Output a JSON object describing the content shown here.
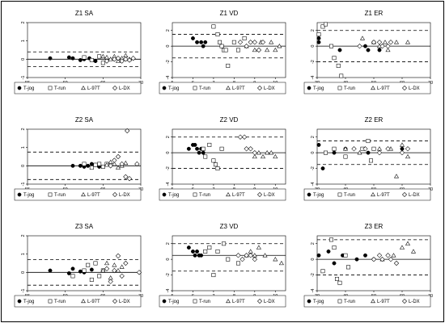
{
  "legend_labels": [
    "T-jog",
    "T-run",
    "L-97T",
    "L-DX"
  ],
  "chart_data": [
    {
      "type": "scatter",
      "title": "Z1 SA",
      "xlim": [
        55,
        70
      ],
      "ylim": [
        -1,
        2
      ],
      "xticks": [
        55,
        60,
        65,
        70
      ],
      "yticks": [
        -1,
        0,
        1,
        2
      ],
      "mean": 0.0,
      "upper": 0.4,
      "lower": -0.4,
      "series": [
        {
          "name": "T-jog",
          "x": [
            58,
            60.5,
            61,
            62,
            62.5,
            63.2,
            64
          ],
          "y": [
            0.05,
            0.1,
            0.05,
            -0.05,
            0.0,
            0.05,
            -0.1
          ]
        },
        {
          "name": "T-run",
          "x": [
            62.5,
            63.5,
            64.5,
            65
          ],
          "y": [
            0.1,
            -0.05,
            0.15,
            -0.2
          ]
        },
        {
          "name": "L-97T",
          "x": [
            65,
            65.5,
            66,
            66.5,
            67,
            67.5,
            68,
            68.5
          ],
          "y": [
            0.15,
            0.1,
            0.0,
            0.15,
            -0.1,
            0.05,
            0.2,
            0.0
          ]
        },
        {
          "name": "L-DX",
          "x": [
            65.5,
            66.5,
            67,
            67.5,
            68,
            68.5,
            69
          ],
          "y": [
            -0.1,
            0.0,
            0.05,
            -0.1,
            0.0,
            -0.05,
            0.05
          ]
        }
      ]
    },
    {
      "type": "scatter",
      "title": "Z1 VD",
      "xlim": [
        5,
        10.5
      ],
      "ylim": [
        -4,
        3
      ],
      "xticks": [
        5,
        6,
        7,
        8,
        9,
        10
      ],
      "yticks": [
        -4,
        -2,
        0,
        2
      ],
      "mean": 0.0,
      "upper": 1.5,
      "lower": -1.5,
      "series": [
        {
          "name": "T-jog",
          "x": [
            6.0,
            6.2,
            6.4,
            6.5,
            6.6
          ],
          "y": [
            1.0,
            0.5,
            0.5,
            0.0,
            0.5
          ]
        },
        {
          "name": "T-run",
          "x": [
            7.0,
            7.2,
            7.3,
            7.4,
            7.5,
            7.6,
            7.7,
            8.0,
            8.2,
            8.5
          ],
          "y": [
            2.5,
            1.5,
            0.5,
            0.0,
            -0.5,
            -0.5,
            -2.5,
            0.5,
            -0.5,
            1.0
          ]
        },
        {
          "name": "L-97T",
          "x": [
            8.6,
            9.0,
            9.3,
            9.6,
            9.8,
            10.0,
            10.2
          ],
          "y": [
            0.0,
            -0.5,
            0.5,
            -0.5,
            0.5,
            -0.5,
            0.0
          ]
        },
        {
          "name": "L-DX",
          "x": [
            8.3,
            8.6,
            8.8,
            9.0,
            9.2,
            9.4
          ],
          "y": [
            0.5,
            0.0,
            0.5,
            0.5,
            -0.5,
            0.5
          ]
        }
      ]
    },
    {
      "type": "scatter",
      "title": "Z1 ER",
      "xlim": [
        30,
        70
      ],
      "ylim": [
        -4,
        3
      ],
      "xticks": [
        30,
        40,
        50,
        60,
        70
      ],
      "yticks": [
        -4,
        -2,
        0,
        2
      ],
      "mean": 0.0,
      "upper": 2.0,
      "lower": -2.0,
      "series": [
        {
          "name": "T-jog",
          "x": [
            29,
            30,
            38,
            47,
            48,
            50,
            52
          ],
          "y": [
            0.5,
            1.0,
            -0.5,
            0.0,
            -0.5,
            0.5,
            -0.5
          ]
        },
        {
          "name": "T-run",
          "x": [
            28.5,
            32,
            33,
            35,
            36,
            37.5,
            38.5
          ],
          "y": [
            1.5,
            2.5,
            3.0,
            0.0,
            -1.5,
            -2.5,
            -4.0
          ]
        },
        {
          "name": "L-97T",
          "x": [
            46,
            50,
            52,
            54,
            55,
            58,
            62
          ],
          "y": [
            1.0,
            0.5,
            0.0,
            0.5,
            -0.5,
            0.5,
            0.5
          ]
        },
        {
          "name": "L-DX",
          "x": [
            45,
            50,
            52,
            53,
            55,
            56
          ],
          "y": [
            0.0,
            0.5,
            0.5,
            0.0,
            0.0,
            0.5
          ]
        }
      ]
    },
    {
      "type": "scatter",
      "title": "Z2 SA",
      "xlim": [
        55,
        70
      ],
      "ylim": [
        -1,
        2
      ],
      "xticks": [
        55,
        60,
        65,
        70
      ],
      "yticks": [
        -1,
        0,
        1,
        2
      ],
      "mean": 0.0,
      "upper": 0.75,
      "lower": -0.75,
      "series": [
        {
          "name": "T-jog",
          "x": [
            61,
            62,
            62.5,
            63,
            63.5,
            64,
            64.5
          ],
          "y": [
            0.0,
            0.0,
            -0.05,
            0.0,
            0.1,
            0.05,
            -0.05
          ]
        },
        {
          "name": "T-run",
          "x": [
            62.5,
            63.5,
            64,
            64.5,
            65,
            65.5
          ],
          "y": [
            0.1,
            -0.1,
            0.05,
            0.1,
            -0.05,
            0.1
          ]
        },
        {
          "name": "L-97T",
          "x": [
            65.5,
            66,
            66.5,
            67,
            67.5,
            68
          ],
          "y": [
            0.05,
            0.2,
            0.1,
            -0.1,
            0.0,
            0.15
          ]
        },
        {
          "name": "L-DX",
          "x": [
            66,
            66.5,
            67,
            67.5,
            68,
            68.2,
            68.5,
            69.5
          ],
          "y": [
            0.0,
            0.3,
            0.5,
            0.1,
            -0.6,
            2.0,
            -0.7,
            0.1
          ]
        }
      ]
    },
    {
      "type": "scatter",
      "title": "Z2 VD",
      "xlim": [
        5,
        10.5
      ],
      "ylim": [
        -4,
        3
      ],
      "xticks": [
        5,
        6,
        7,
        8,
        9,
        10
      ],
      "yticks": [
        -4,
        -2,
        0,
        2
      ],
      "mean": 0.0,
      "upper": 2.0,
      "lower": -2.0,
      "series": [
        {
          "name": "T-jog",
          "x": [
            5.8,
            6.0,
            6.1,
            6.2,
            6.3,
            6.4,
            6.5
          ],
          "y": [
            0.5,
            1.0,
            1.0,
            0.5,
            0.0,
            0.5,
            0.0
          ]
        },
        {
          "name": "T-run",
          "x": [
            6.5,
            6.6,
            6.8,
            7.0,
            7.1,
            7.2,
            7.4
          ],
          "y": [
            0.5,
            -0.5,
            1.0,
            -1.0,
            -1.5,
            -2.0,
            0.5
          ]
        },
        {
          "name": "L-97T",
          "x": [
            9.0,
            9.2,
            9.4,
            9.6,
            9.8,
            10.0
          ],
          "y": [
            -0.5,
            0.0,
            -0.5,
            0.0,
            0.0,
            -0.5
          ]
        },
        {
          "name": "L-DX",
          "x": [
            8.3,
            8.5,
            8.6,
            8.8,
            9.0
          ],
          "y": [
            2.0,
            2.0,
            0.5,
            0.5,
            0.0
          ]
        }
      ]
    },
    {
      "type": "scatter",
      "title": "Z2 ER",
      "xlim": [
        30,
        70
      ],
      "ylim": [
        -4,
        3
      ],
      "xticks": [
        30,
        40,
        50,
        60,
        70
      ],
      "yticks": [
        -4,
        -2,
        0,
        2
      ],
      "mean": 0.0,
      "upper": 1.5,
      "lower": -1.5,
      "series": [
        {
          "name": "T-jog",
          "x": [
            29,
            32,
            36,
            40,
            48,
            60
          ],
          "y": [
            1.0,
            -2.0,
            0.0,
            0.5,
            0.0,
            0.5
          ]
        },
        {
          "name": "T-run",
          "x": [
            33,
            36,
            40,
            46,
            48,
            49,
            50
          ],
          "y": [
            0.0,
            0.5,
            -0.5,
            0.5,
            1.5,
            -1.0,
            0.5
          ]
        },
        {
          "name": "L-97T",
          "x": [
            40,
            45,
            52,
            56,
            58,
            60,
            62
          ],
          "y": [
            0.5,
            0.0,
            0.5,
            0.5,
            -3.0,
            1.0,
            -0.5
          ]
        },
        {
          "name": "L-DX",
          "x": [
            43,
            47,
            52,
            55,
            60,
            62
          ],
          "y": [
            0.5,
            0.5,
            0.0,
            0.5,
            0.0,
            0.5
          ]
        }
      ]
    },
    {
      "type": "scatter",
      "title": "Z3 SA",
      "xlim": [
        55,
        70
      ],
      "ylim": [
        -1,
        2
      ],
      "xticks": [
        55,
        60,
        65,
        70
      ],
      "yticks": [
        -1,
        0,
        1,
        2
      ],
      "mean": 0.0,
      "upper": 0.7,
      "lower": -0.7,
      "series": [
        {
          "name": "T-jog",
          "x": [
            58,
            60.5,
            61,
            62,
            62.5,
            63.5
          ],
          "y": [
            0.1,
            -0.05,
            0.2,
            0.05,
            0.0,
            0.15
          ]
        },
        {
          "name": "T-run",
          "x": [
            61,
            62.5,
            63,
            63.5,
            64,
            64.5,
            65
          ],
          "y": [
            -0.2,
            0.1,
            0.4,
            -0.4,
            0.5,
            -0.2,
            0.1
          ]
        },
        {
          "name": "L-97T",
          "x": [
            65,
            65.5,
            66,
            66.5,
            67,
            67.5
          ],
          "y": [
            0.1,
            0.5,
            -0.3,
            0.4,
            0.1,
            0.3
          ]
        },
        {
          "name": "L-DX",
          "x": [
            65.5,
            66,
            66.5,
            67,
            67.5,
            68,
            70
          ],
          "y": [
            0.2,
            -0.5,
            0.1,
            0.9,
            -0.2,
            0.5,
            0.0
          ]
        }
      ]
    },
    {
      "type": "scatter",
      "title": "Z3 VD",
      "xlim": [
        5,
        10.5
      ],
      "ylim": [
        -4,
        3
      ],
      "xticks": [
        5,
        6,
        7,
        8,
        9,
        10
      ],
      "yticks": [
        -4,
        -2,
        0,
        2
      ],
      "mean": 0.5,
      "upper": 2.0,
      "lower": -1.5,
      "series": [
        {
          "name": "T-jog",
          "x": [
            5.8,
            6.0,
            6.1,
            6.2,
            6.3,
            6.4
          ],
          "y": [
            1.5,
            1.0,
            0.5,
            1.0,
            0.5,
            0.5
          ]
        },
        {
          "name": "T-run",
          "x": [
            6.6,
            6.8,
            7.0,
            7.2,
            7.5,
            7.7,
            8.2
          ],
          "y": [
            1.0,
            1.5,
            -2.0,
            1.0,
            2.0,
            0.0,
            -0.5
          ]
        },
        {
          "name": "L-97T",
          "x": [
            8.6,
            8.8,
            9.0,
            9.2,
            9.5,
            10.0,
            10.3
          ],
          "y": [
            0.5,
            1.0,
            0.5,
            1.5,
            0.5,
            0.0,
            -0.5
          ]
        },
        {
          "name": "L-DX",
          "x": [
            8.2,
            8.4,
            8.6,
            8.8,
            9.0
          ],
          "y": [
            0.5,
            0.0,
            0.5,
            0.5,
            0.0
          ]
        }
      ]
    },
    {
      "type": "scatter",
      "title": "Z3 ER",
      "xlim": [
        30,
        70
      ],
      "ylim": [
        -4,
        3
      ],
      "xticks": [
        30,
        40,
        50,
        60,
        70
      ],
      "yticks": [
        -4,
        -2,
        0,
        2
      ],
      "mean": 0.0,
      "upper": 2.5,
      "lower": -2.0,
      "series": [
        {
          "name": "T-jog",
          "x": [
            30,
            34,
            36,
            39,
            44,
            47,
            50
          ],
          "y": [
            0.5,
            1.0,
            -0.5,
            0.5,
            0.0,
            0.5,
            0.0
          ]
        },
        {
          "name": "T-run",
          "x": [
            32,
            35,
            36,
            37,
            38,
            40,
            41
          ],
          "y": [
            -1.5,
            2.5,
            1.5,
            -2.5,
            -3.0,
            0.5,
            -1.0
          ]
        },
        {
          "name": "L-97T",
          "x": [
            53,
            57,
            60,
            62,
            64
          ],
          "y": [
            0.0,
            0.5,
            1.5,
            2.0,
            1.0
          ]
        },
        {
          "name": "L-DX",
          "x": [
            50,
            52,
            53,
            55,
            56,
            58
          ],
          "y": [
            0.0,
            0.5,
            0.0,
            0.5,
            0.0,
            -0.5
          ]
        }
      ]
    }
  ]
}
